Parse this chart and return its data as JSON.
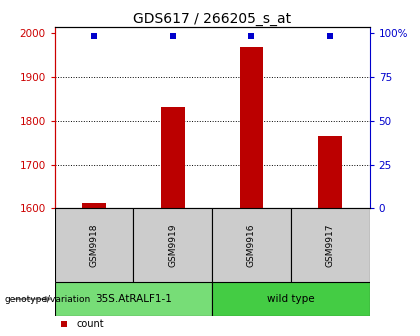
{
  "title": "GDS617 / 266205_s_at",
  "samples": [
    "GSM9918",
    "GSM9919",
    "GSM9916",
    "GSM9917"
  ],
  "counts": [
    1612,
    1832,
    1968,
    1766
  ],
  "ylim": [
    1600,
    2000
  ],
  "yticks_left": [
    1600,
    1700,
    1800,
    1900,
    2000
  ],
  "yticks_right": [
    0,
    25,
    50,
    75,
    100
  ],
  "yticks_right_labels": [
    "0",
    "25",
    "50",
    "75",
    "100%"
  ],
  "bar_color": "#bb0000",
  "dot_color": "#0000cc",
  "genotype_groups": [
    {
      "label": "35S.AtRALF1-1",
      "samples": [
        0,
        1
      ],
      "color": "#77dd77"
    },
    {
      "label": "wild type",
      "samples": [
        2,
        3
      ],
      "color": "#44cc44"
    }
  ],
  "left_axis_color": "#cc0000",
  "right_axis_color": "#0000cc",
  "title_fontsize": 10,
  "tick_fontsize": 7.5,
  "bar_width": 0.3,
  "cell_bg": "#cccccc"
}
